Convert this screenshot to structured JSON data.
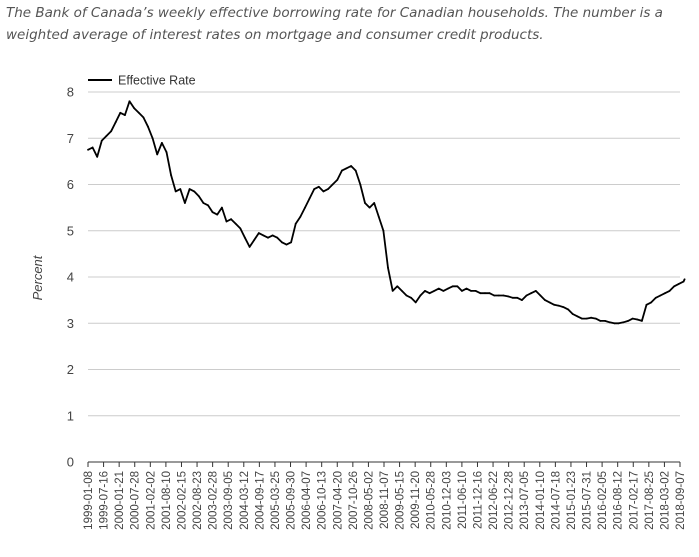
{
  "caption": "The Bank of Canada’s weekly effective borrowing rate for Canadian households. The number is a weighted average of interest rates on mortgage and consumer credit products.",
  "chart_data": {
    "type": "line",
    "title": "",
    "xlabel": "",
    "ylabel": "Percent",
    "ylim": [
      0,
      8
    ],
    "yticks": [
      0,
      1,
      2,
      3,
      4,
      5,
      6,
      7,
      8
    ],
    "grid": true,
    "legend": "top-left",
    "x_ticks": [
      "1999-01-08",
      "1999-07-16",
      "2000-01-21",
      "2000-07-28",
      "2001-02-02",
      "2001-08-10",
      "2002-02-15",
      "2002-08-23",
      "2003-02-28",
      "2003-09-05",
      "2004-03-12",
      "2004-09-17",
      "2005-03-25",
      "2005-09-30",
      "2006-04-07",
      "2006-10-13",
      "2007-04-20",
      "2007-10-26",
      "2008-05-02",
      "2008-11-07",
      "2009-05-15",
      "2009-11-20",
      "2010-05-28",
      "2010-12-03",
      "2011-06-10",
      "2011-12-16",
      "2012-06-22",
      "2012-12-28",
      "2013-07-05",
      "2014-01-10",
      "2014-07-18",
      "2015-01-23",
      "2015-07-31",
      "2016-02-05",
      "2016-08-12",
      "2017-02-17",
      "2017-08-25",
      "2018-03-02",
      "2018-09-07"
    ],
    "series": [
      {
        "name": "Effective Rate",
        "color": "#000000",
        "x": [
          "1999-01-08",
          "1999-03-05",
          "1999-04-30",
          "1999-06-25",
          "1999-08-20",
          "1999-10-15",
          "1999-12-10",
          "2000-02-04",
          "2000-03-31",
          "2000-05-26",
          "2000-07-21",
          "2000-09-15",
          "2000-11-10",
          "2001-01-05",
          "2001-03-02",
          "2001-04-27",
          "2001-06-22",
          "2001-08-17",
          "2001-10-12",
          "2001-12-07",
          "2002-02-01",
          "2002-03-29",
          "2002-05-24",
          "2002-07-19",
          "2002-09-13",
          "2002-11-08",
          "2003-01-03",
          "2003-02-28",
          "2003-04-25",
          "2003-06-20",
          "2003-08-15",
          "2003-10-10",
          "2003-12-05",
          "2004-01-30",
          "2004-03-26",
          "2004-05-21",
          "2004-07-16",
          "2004-09-10",
          "2004-11-05",
          "2004-12-31",
          "2005-02-25",
          "2005-04-22",
          "2005-06-17",
          "2005-08-12",
          "2005-10-07",
          "2005-12-02",
          "2006-01-27",
          "2006-03-24",
          "2006-05-19",
          "2006-07-14",
          "2006-09-08",
          "2006-11-03",
          "2006-12-29",
          "2007-02-23",
          "2007-04-20",
          "2007-06-15",
          "2007-08-10",
          "2007-10-05",
          "2007-11-30",
          "2008-01-25",
          "2008-03-21",
          "2008-05-16",
          "2008-07-11",
          "2008-09-05",
          "2008-10-31",
          "2008-12-26",
          "2009-02-20",
          "2009-04-17",
          "2009-06-12",
          "2009-08-07",
          "2009-10-02",
          "2009-11-27",
          "2010-01-22",
          "2010-03-19",
          "2010-05-14",
          "2010-07-09",
          "2010-09-03",
          "2010-10-29",
          "2010-12-24",
          "2011-02-18",
          "2011-04-15",
          "2011-06-10",
          "2011-08-05",
          "2011-09-30",
          "2011-11-25",
          "2012-01-20",
          "2012-03-16",
          "2012-05-11",
          "2012-07-06",
          "2012-08-31",
          "2012-10-26",
          "2012-12-21",
          "2013-02-15",
          "2013-04-12",
          "2013-06-07",
          "2013-08-02",
          "2013-09-27",
          "2013-11-22",
          "2014-01-17",
          "2014-03-14",
          "2014-05-09",
          "2014-07-04",
          "2014-08-29",
          "2014-10-24",
          "2014-12-19",
          "2015-02-13",
          "2015-04-10",
          "2015-06-05",
          "2015-07-31",
          "2015-09-25",
          "2015-11-20",
          "2016-01-15",
          "2016-03-11",
          "2016-05-06",
          "2016-07-01",
          "2016-08-26",
          "2016-10-21",
          "2016-12-16",
          "2017-02-10",
          "2017-04-07",
          "2017-06-02",
          "2017-07-28",
          "2017-09-22",
          "2017-11-17",
          "2018-01-12",
          "2018-03-09",
          "2018-05-04",
          "2018-06-29",
          "2018-08-24",
          "2018-10-19",
          "2018-11-02"
        ],
        "values": [
          6.75,
          6.8,
          6.6,
          6.95,
          7.05,
          7.15,
          7.35,
          7.55,
          7.5,
          7.8,
          7.65,
          7.55,
          7.45,
          7.25,
          7.0,
          6.65,
          6.9,
          6.7,
          6.2,
          5.85,
          5.9,
          5.6,
          5.9,
          5.85,
          5.75,
          5.6,
          5.55,
          5.4,
          5.35,
          5.5,
          5.2,
          5.25,
          5.15,
          5.05,
          4.85,
          4.65,
          4.8,
          4.95,
          4.9,
          4.85,
          4.9,
          4.85,
          4.75,
          4.7,
          4.75,
          5.15,
          5.3,
          5.5,
          5.7,
          5.9,
          5.95,
          5.85,
          5.9,
          6.0,
          6.1,
          6.3,
          6.35,
          6.4,
          6.3,
          6.0,
          5.6,
          5.5,
          5.6,
          5.3,
          5.0,
          4.2,
          3.7,
          3.8,
          3.7,
          3.6,
          3.55,
          3.45,
          3.6,
          3.7,
          3.65,
          3.7,
          3.75,
          3.7,
          3.75,
          3.8,
          3.8,
          3.7,
          3.75,
          3.7,
          3.7,
          3.65,
          3.65,
          3.65,
          3.6,
          3.6,
          3.6,
          3.58,
          3.55,
          3.55,
          3.5,
          3.6,
          3.65,
          3.7,
          3.6,
          3.5,
          3.45,
          3.4,
          3.38,
          3.35,
          3.3,
          3.2,
          3.15,
          3.1,
          3.1,
          3.12,
          3.1,
          3.05,
          3.05,
          3.02,
          3.0,
          3.0,
          3.02,
          3.05,
          3.1,
          3.08,
          3.05,
          3.4,
          3.45,
          3.55,
          3.6,
          3.65,
          3.7,
          3.8,
          3.85,
          3.9,
          3.95
        ]
      }
    ]
  }
}
